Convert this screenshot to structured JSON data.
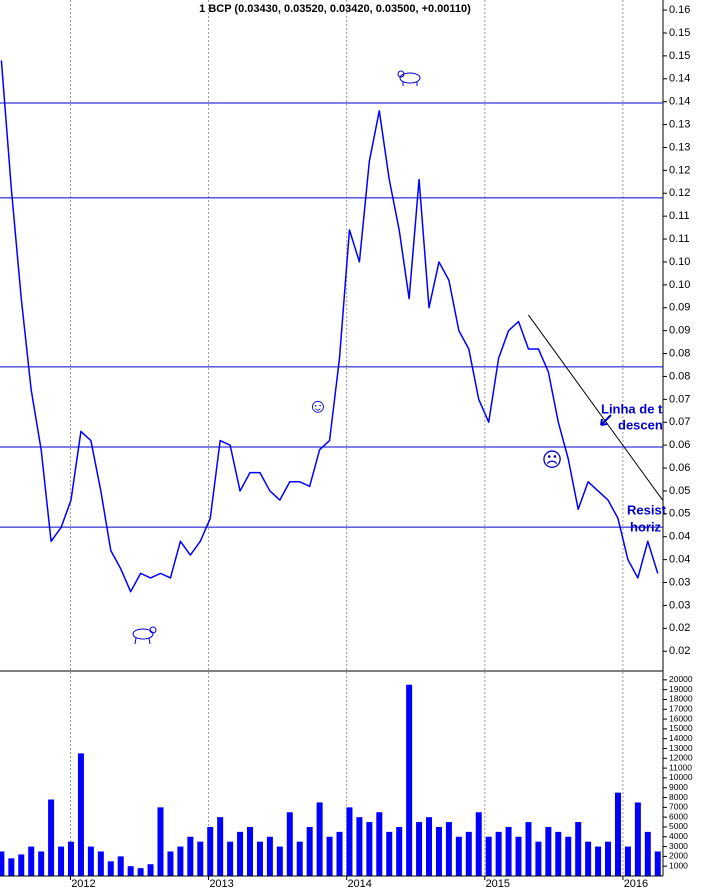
{
  "chart_data": [
    {
      "type": "line",
      "title": "1 BCP (0.03430, 0.03520, 0.03420, 0.03500, +0.00110)",
      "color": "#0000ff",
      "x": [
        2011.5,
        2011.572,
        2011.644,
        2011.716,
        2011.788,
        2011.86,
        2011.932,
        2012.004,
        2012.076,
        2012.148,
        2012.22,
        2012.292,
        2012.364,
        2012.436,
        2012.508,
        2012.58,
        2012.652,
        2012.724,
        2012.796,
        2012.868,
        2012.94,
        2013.012,
        2013.084,
        2013.156,
        2013.228,
        2013.3,
        2013.372,
        2013.444,
        2013.516,
        2013.588,
        2013.66,
        2013.732,
        2013.804,
        2013.876,
        2013.948,
        2014.02,
        2014.092,
        2014.164,
        2014.236,
        2014.308,
        2014.38,
        2014.452,
        2014.524,
        2014.596,
        2014.668,
        2014.74,
        2014.812,
        2014.884,
        2014.956,
        2015.028,
        2015.1,
        2015.172,
        2015.244,
        2015.316,
        2015.388,
        2015.46,
        2015.532,
        2015.604,
        2015.676,
        2015.748,
        2015.82,
        2015.892,
        2015.964,
        2016.036,
        2016.108,
        2016.18,
        2016.252
      ],
      "values": [
        0.149,
        0.121,
        0.097,
        0.077,
        0.064,
        0.044,
        0.047,
        0.053,
        0.068,
        0.066,
        0.055,
        0.042,
        0.038,
        0.033,
        0.037,
        0.036,
        0.037,
        0.036,
        0.044,
        0.041,
        0.044,
        0.049,
        0.066,
        0.065,
        0.055,
        0.059,
        0.059,
        0.055,
        0.053,
        0.057,
        0.057,
        0.056,
        0.064,
        0.066,
        0.084,
        0.112,
        0.105,
        0.127,
        0.138,
        0.123,
        0.112,
        0.097,
        0.123,
        0.095,
        0.105,
        0.101,
        0.09,
        0.086,
        0.075,
        0.07,
        0.084,
        0.09,
        0.092,
        0.086,
        0.086,
        0.081,
        0.07,
        0.062,
        0.051,
        0.057,
        0.055,
        0.053,
        0.049,
        0.04,
        0.036,
        0.044,
        0.037
      ],
      "xlim": [
        2011.49,
        2016.29
      ],
      "ylim": [
        0.0159,
        0.1622
      ],
      "yticks": [
        0.16,
        {
          "value": 0.155,
          "label": "0.15"
        },
        0.15,
        {
          "value": 0.145,
          "label": "0.14"
        },
        0.14,
        {
          "value": 0.135,
          "label": "0.13"
        },
        0.13,
        {
          "value": 0.125,
          "label": "0.12"
        },
        0.12,
        {
          "value": 0.115,
          "label": "0.11"
        },
        0.11,
        {
          "value": 0.105,
          "label": "0.10"
        },
        {
          "value": 0.1,
          "label": "0.10"
        },
        {
          "value": 0.095,
          "label": "0.09"
        },
        0.09,
        {
          "value": 0.085,
          "label": "0.08"
        },
        0.08,
        {
          "value": 0.075,
          "label": "0.07"
        },
        0.07,
        {
          "value": 0.065,
          "label": "0.06"
        },
        0.06,
        {
          "value": 0.055,
          "label": "0.05"
        },
        0.05,
        {
          "value": 0.045,
          "label": "0.04"
        },
        0.04,
        {
          "value": 0.035,
          "label": "0.03"
        },
        0.03,
        {
          "value": 0.025,
          "label": "0.02"
        },
        0.02
      ],
      "hlines": [
        0.1397,
        0.119,
        0.0821,
        0.0646,
        0.0471
      ],
      "hline_color": "#0000cc",
      "trendline": {
        "x": [
          2015.316,
          2016.287
        ],
        "values": [
          0.0934,
          0.053
        ]
      },
      "annotations": [
        "Linha de t",
        "descen",
        "Resist",
        "horiz",
        "☺",
        "☹"
      ]
    },
    {
      "type": "bar",
      "color": "#0000ff",
      "x": [
        2011.5,
        2011.572,
        2011.644,
        2011.716,
        2011.788,
        2011.86,
        2011.932,
        2012.004,
        2012.076,
        2012.148,
        2012.22,
        2012.292,
        2012.364,
        2012.436,
        2012.508,
        2012.58,
        2012.652,
        2012.724,
        2012.796,
        2012.868,
        2012.94,
        2013.012,
        2013.084,
        2013.156,
        2013.228,
        2013.3,
        2013.372,
        2013.444,
        2013.516,
        2013.588,
        2013.66,
        2013.732,
        2013.804,
        2013.876,
        2013.948,
        2014.02,
        2014.092,
        2014.164,
        2014.236,
        2014.308,
        2014.38,
        2014.452,
        2014.524,
        2014.596,
        2014.668,
        2014.74,
        2014.812,
        2014.884,
        2014.956,
        2015.028,
        2015.1,
        2015.172,
        2015.244,
        2015.316,
        2015.388,
        2015.46,
        2015.532,
        2015.604,
        2015.676,
        2015.748,
        2015.82,
        2015.892,
        2015.964,
        2016.036,
        2016.108,
        2016.18,
        2016.252
      ],
      "values": [
        2500,
        1800,
        2200,
        3000,
        2500,
        7800,
        3000,
        3500,
        12500,
        3000,
        2500,
        1500,
        2000,
        1000,
        800,
        1200,
        7000,
        2500,
        3000,
        4000,
        3500,
        5000,
        6000,
        3500,
        4500,
        5000,
        3500,
        4000,
        3000,
        6500,
        3500,
        5000,
        7500,
        4000,
        4500,
        7000,
        6000,
        5500,
        6500,
        4500,
        5000,
        19500,
        5500,
        6000,
        5000,
        5500,
        4000,
        4500,
        6500,
        4000,
        4500,
        5000,
        4000,
        5500,
        3500,
        5000,
        4500,
        4000,
        5500,
        3500,
        3000,
        3500,
        8500,
        3000,
        7500,
        4500,
        2500
      ],
      "xlim": [
        2011.49,
        2016.29
      ],
      "ylim": [
        0,
        20800
      ],
      "yticks": [
        20000,
        19000,
        18000,
        17000,
        16000,
        15000,
        14000,
        13000,
        12000,
        11000,
        10000,
        9000,
        8000,
        7000,
        6000,
        5000,
        4000,
        3000,
        2000,
        1000
      ],
      "xticks": [
        2012,
        2013,
        2014,
        2015,
        2016
      ]
    }
  ]
}
